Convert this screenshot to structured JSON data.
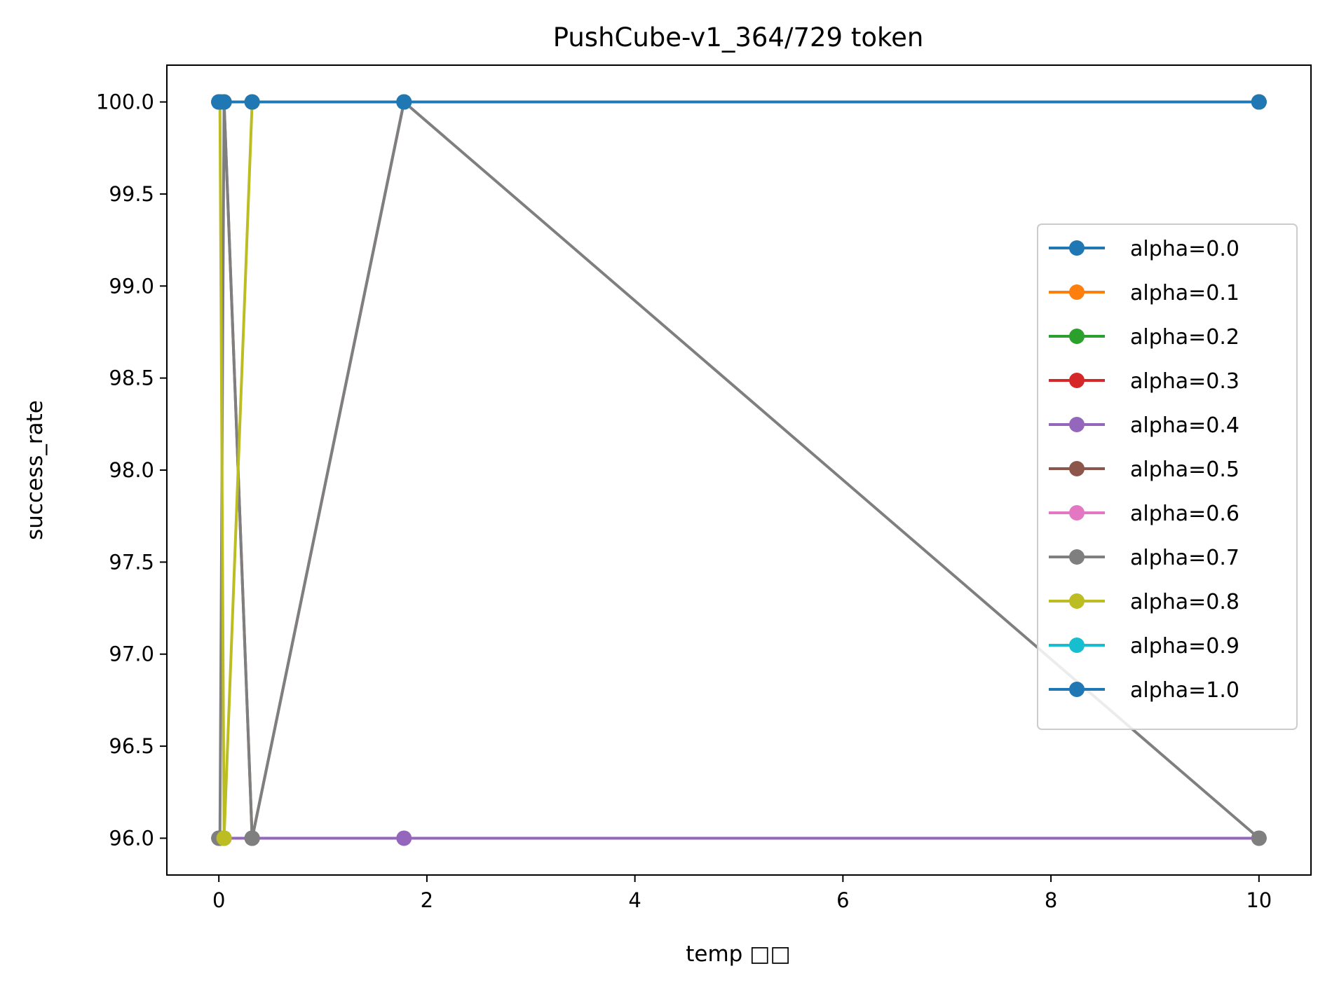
{
  "chart_data": {
    "type": "line",
    "title": "PushCube-v1_364/729 token",
    "xlabel": "temp □□",
    "ylabel": "success_rate",
    "xlim": [
      -0.5,
      10.5
    ],
    "ylim": [
      95.8,
      100.2
    ],
    "xticks": [
      0,
      2,
      4,
      6,
      8,
      10
    ],
    "yticks": [
      96.0,
      96.5,
      97.0,
      97.5,
      98.0,
      98.5,
      99.0,
      99.5,
      100.0
    ],
    "ytick_labels": [
      "96.0",
      "96.5",
      "97.0",
      "97.5",
      "98.0",
      "98.5",
      "99.0",
      "99.5",
      "100.0"
    ],
    "grid": false,
    "legend_position": "center-right",
    "x": [
      0.0,
      0.01,
      0.05,
      0.32,
      1.78,
      10.0
    ],
    "series": [
      {
        "name": "alpha=0.0",
        "color": "#1f77b4",
        "values": [
          100,
          100,
          100,
          100,
          100,
          100
        ]
      },
      {
        "name": "alpha=0.1",
        "color": "#ff7f0e",
        "values": [
          100,
          100,
          100,
          100,
          100,
          100
        ]
      },
      {
        "name": "alpha=0.2",
        "color": "#2ca02c",
        "values": [
          100,
          100,
          100,
          100,
          100,
          100
        ]
      },
      {
        "name": "alpha=0.3",
        "color": "#d62728",
        "values": [
          100,
          100,
          100,
          100,
          100,
          100
        ]
      },
      {
        "name": "alpha=0.4",
        "color": "#9467bd",
        "values": [
          96,
          96,
          96,
          96,
          96,
          96
        ]
      },
      {
        "name": "alpha=0.5",
        "color": "#8c564b",
        "values": [
          100,
          100,
          100,
          96,
          100,
          100
        ]
      },
      {
        "name": "alpha=0.6",
        "color": "#e377c2",
        "values": [
          100,
          100,
          100,
          100,
          100,
          100
        ]
      },
      {
        "name": "alpha=0.7",
        "color": "#7f7f7f",
        "values": [
          96,
          96,
          100,
          96,
          100,
          96
        ]
      },
      {
        "name": "alpha=0.8",
        "color": "#bcbd22",
        "values": [
          100,
          100,
          96,
          100,
          100,
          100
        ]
      },
      {
        "name": "alpha=0.9",
        "color": "#17becf",
        "values": [
          100,
          100,
          100,
          100,
          100,
          100
        ]
      },
      {
        "name": "alpha=1.0",
        "color": "#1f77b4",
        "values": [
          100,
          100,
          100,
          100,
          100,
          100
        ]
      }
    ]
  }
}
